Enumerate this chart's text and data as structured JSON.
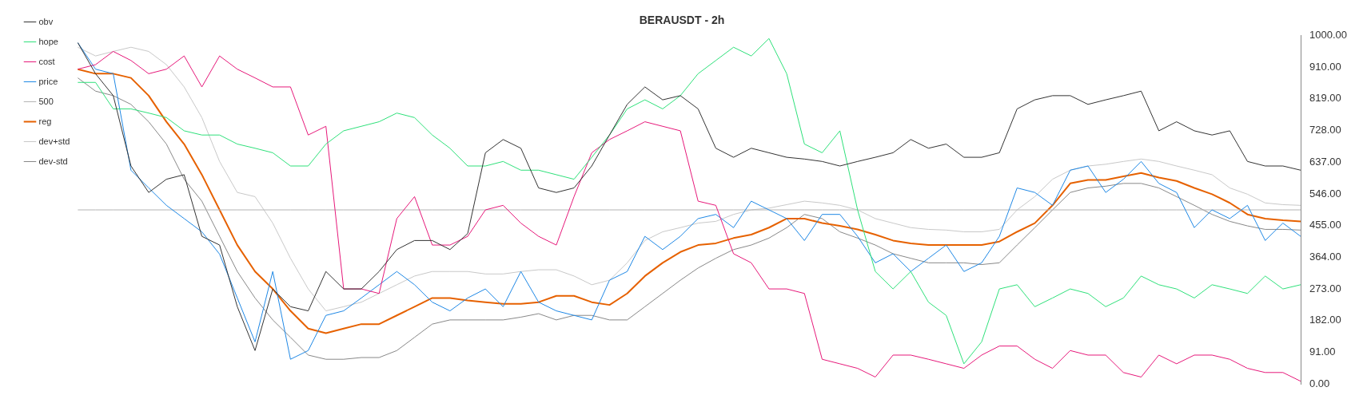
{
  "chart_data": {
    "type": "line",
    "title": "BERAUSDT - 2h",
    "categories": [
      null,
      null,
      null,
      null,
      null,
      null,
      null,
      null,
      null,
      null,
      null,
      null,
      null,
      null,
      null,
      null,
      null,
      null,
      null,
      null,
      null,
      null,
      null,
      null,
      null,
      null,
      null,
      null,
      null,
      null,
      null,
      null,
      null,
      null,
      null,
      null,
      null,
      null,
      null,
      null,
      null,
      null,
      null,
      null,
      null,
      null,
      null,
      null,
      null,
      null,
      null,
      null,
      null,
      null,
      null,
      null,
      null,
      null,
      null,
      null,
      null,
      null,
      null,
      null,
      null,
      null,
      null,
      null,
      null,
      null
    ],
    "ylim": [
      0,
      1000
    ],
    "yticks": [
      {
        "value": 0,
        "label": "0.00"
      },
      {
        "value": 91,
        "label": "91.00"
      },
      {
        "value": 182,
        "label": "182.00"
      },
      {
        "value": 273,
        "label": "273.00"
      },
      {
        "value": 364,
        "label": "364.00"
      },
      {
        "value": 455,
        "label": "455.00"
      },
      {
        "value": 546,
        "label": "546.00"
      },
      {
        "value": 637,
        "label": "637.00"
      },
      {
        "value": 728,
        "label": "728.00"
      },
      {
        "value": 819,
        "label": "819.00"
      },
      {
        "value": 910,
        "label": "910.00"
      },
      {
        "value": 1000,
        "label": "1000.00"
      }
    ],
    "grid": false,
    "legend": "top left",
    "marker": "none",
    "line_style": "solid",
    "series": [
      {
        "name": "obv",
        "color": "#333333",
        "values": [
          980,
          891,
          828,
          626,
          550,
          588,
          601,
          424,
          399,
          222,
          96,
          273,
          222,
          210,
          323,
          273,
          273,
          323,
          386,
          412,
          412,
          386,
          432,
          664,
          702,
          677,
          563,
          550,
          563,
          626,
          715,
          803,
          853,
          816,
          828,
          790,
          677,
          651,
          677,
          664,
          651,
          646,
          639,
          626,
          639,
          651,
          664,
          702,
          677,
          689,
          651,
          651,
          664,
          790,
          816,
          828,
          828,
          803,
          816,
          828,
          841,
          727,
          753,
          727,
          715,
          727,
          639,
          626,
          626,
          614
        ]
      },
      {
        "name": "hope",
        "color": "#2ee07a",
        "values": [
          866,
          866,
          790,
          790,
          778,
          765,
          727,
          715,
          715,
          689,
          677,
          664,
          626,
          626,
          689,
          727,
          740,
          753,
          778,
          765,
          715,
          677,
          626,
          626,
          639,
          614,
          614,
          601,
          588,
          651,
          715,
          790,
          816,
          790,
          828,
          891,
          929,
          967,
          942,
          992,
          891,
          689,
          664,
          727,
          500,
          323,
          273,
          323,
          235,
          197,
          58,
          121,
          273,
          285,
          222,
          247,
          273,
          260,
          222,
          247,
          310,
          285,
          273,
          247,
          285,
          273,
          260,
          310,
          273,
          285
        ]
      },
      {
        "name": "cost",
        "color": "#e6197a",
        "values": [
          904,
          917,
          955,
          929,
          891,
          904,
          942,
          853,
          942,
          904,
          879,
          853,
          853,
          715,
          740,
          273,
          273,
          260,
          475,
          538,
          399,
          399,
          424,
          500,
          513,
          462,
          424,
          399,
          538,
          664,
          702,
          727,
          753,
          740,
          727,
          525,
          513,
          374,
          348,
          273,
          273,
          260,
          71,
          58,
          45,
          20,
          83,
          83,
          71,
          58,
          45,
          83,
          109,
          109,
          71,
          45,
          96,
          83,
          83,
          33,
          20,
          83,
          58,
          83,
          83,
          71,
          45,
          33,
          33,
          8
        ]
      },
      {
        "name": "price",
        "color": "#1f88e5",
        "values": [
          980,
          904,
          891,
          614,
          563,
          513,
          475,
          437,
          373,
          247,
          121,
          323,
          71,
          96,
          197,
          210,
          247,
          285,
          323,
          285,
          235,
          210,
          247,
          273,
          222,
          323,
          235,
          210,
          197,
          184,
          298,
          323,
          424,
          386,
          424,
          475,
          487,
          449,
          525,
          500,
          475,
          412,
          487,
          487,
          424,
          348,
          374,
          323,
          361,
          399,
          323,
          348,
          424,
          563,
          550,
          513,
          614,
          626,
          550,
          588,
          639,
          576,
          550,
          449,
          500,
          475,
          513,
          412,
          462,
          424
        ]
      },
      {
        "name": "500",
        "color": "#b4b4b4",
        "values": [
          500,
          500,
          500,
          500,
          500,
          500,
          500,
          500,
          500,
          500,
          500,
          500,
          500,
          500,
          500,
          500,
          500,
          500,
          500,
          500,
          500,
          500,
          500,
          500,
          500,
          500,
          500,
          500,
          500,
          500,
          500,
          500,
          500,
          500,
          500,
          500,
          500,
          500,
          500,
          500,
          500,
          500,
          500,
          500,
          500,
          500,
          500,
          500,
          500,
          500,
          500,
          500,
          500,
          500,
          500,
          500,
          500,
          500,
          500,
          500,
          500,
          500,
          500,
          500,
          500,
          500,
          500,
          500,
          500,
          500
        ]
      },
      {
        "name": "reg",
        "color": "#e66100",
        "values": [
          904,
          891,
          891,
          879,
          828,
          753,
          689,
          601,
          500,
          399,
          323,
          273,
          210,
          159,
          146,
          159,
          172,
          172,
          197,
          222,
          247,
          247,
          240,
          235,
          230,
          230,
          235,
          253,
          253,
          235,
          227,
          260,
          310,
          348,
          379,
          399,
          404,
          419,
          429,
          449,
          475,
          475,
          462,
          454,
          444,
          429,
          412,
          404,
          399,
          399,
          399,
          399,
          409,
          437,
          462,
          513,
          576,
          586,
          586,
          596,
          606,
          593,
          583,
          563,
          545,
          520,
          487,
          475,
          470,
          467
        ]
      },
      {
        "name": "dev+std",
        "color": "#c8c8c8",
        "values": [
          967,
          942,
          955,
          967,
          955,
          917,
          853,
          765,
          639,
          550,
          538,
          462,
          361,
          273,
          210,
          222,
          235,
          260,
          285,
          310,
          323,
          323,
          323,
          316,
          316,
          323,
          328,
          328,
          310,
          285,
          298,
          348,
          412,
          437,
          449,
          462,
          467,
          487,
          500,
          505,
          515,
          525,
          520,
          513,
          500,
          475,
          462,
          449,
          444,
          442,
          437,
          437,
          444,
          500,
          538,
          588,
          614,
          626,
          631,
          639,
          646,
          639,
          626,
          614,
          601,
          563,
          545,
          520,
          515,
          513
        ]
      },
      {
        "name": "dev-std",
        "color": "#888888",
        "values": [
          879,
          841,
          828,
          803,
          753,
          689,
          588,
          525,
          424,
          323,
          247,
          184,
          134,
          83,
          71,
          71,
          76,
          76,
          96,
          134,
          172,
          184,
          184,
          184,
          184,
          192,
          202,
          184,
          197,
          197,
          184,
          184,
          222,
          260,
          298,
          333,
          361,
          386,
          399,
          419,
          449,
          487,
          475,
          437,
          419,
          399,
          374,
          361,
          348,
          348,
          348,
          343,
          348,
          399,
          449,
          500,
          550,
          563,
          568,
          576,
          576,
          563,
          538,
          513,
          487,
          467,
          454,
          444,
          444,
          442
        ]
      }
    ]
  }
}
